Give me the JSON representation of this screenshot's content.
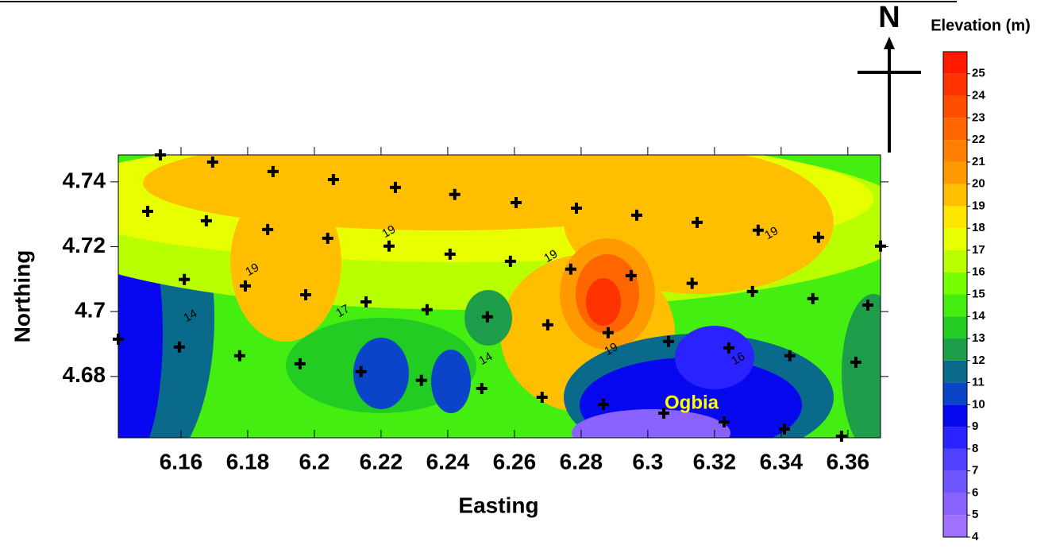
{
  "chart_data": {
    "type": "contour",
    "xlabel": "Easting",
    "ylabel": "Northing",
    "xlim": [
      6.1412,
      6.3698
    ],
    "ylim": [
      4.6611,
      4.7483
    ],
    "xticks": [
      6.16,
      6.18,
      6.2,
      6.22,
      6.24,
      6.26,
      6.28,
      6.3,
      6.32,
      6.34,
      6.36
    ],
    "yticks": [
      4.74,
      4.72,
      4.7,
      4.68
    ],
    "colorbar": {
      "label": "Elevation (m)",
      "levels": [
        4,
        5,
        6,
        7,
        8,
        9,
        10,
        11,
        12,
        13,
        14,
        15,
        16,
        17,
        18,
        19,
        20,
        21,
        22,
        23,
        24,
        25
      ],
      "colors": [
        "#a070ff",
        "#8a62ff",
        "#6f55ff",
        "#5040ff",
        "#2a22ff",
        "#0808f0",
        "#0a44c8",
        "#0a6a8c",
        "#1e9e4a",
        "#22cc22",
        "#44ee11",
        "#77ff00",
        "#b8ff00",
        "#e8ff00",
        "#ffe600",
        "#ffbf00",
        "#ff9900",
        "#ff8000",
        "#ff6600",
        "#ff4d00",
        "#ff3300",
        "#ff1a00"
      ]
    },
    "north": "N",
    "place_label": "Ogbia",
    "contour_labels": [
      "19",
      "17",
      "19",
      "19",
      "19",
      "19",
      "14",
      "16",
      "14"
    ],
    "wells": {
      "x": [
        6.1538,
        6.1695,
        6.15,
        6.1876,
        6.2057,
        6.2243,
        6.2421,
        6.2605,
        6.2786,
        6.2967,
        6.3148,
        6.3331,
        6.3512,
        6.3698,
        6.1676,
        6.186,
        6.204,
        6.2224,
        6.2407,
        6.2588,
        6.2769,
        6.295,
        6.3133,
        6.3314,
        6.3495,
        6.366,
        6.161,
        6.1793,
        6.1974,
        6.2155,
        6.2338,
        6.2519,
        6.27,
        6.2881,
        6.3062,
        6.3243,
        6.3426,
        6.3624,
        6.1412,
        6.1595,
        6.1776,
        6.1957,
        6.214,
        6.2321,
        6.2502,
        6.2683,
        6.2867,
        6.3048,
        6.3229,
        6.341,
        6.3581
      ],
      "y": [
        4.7483,
        4.7461,
        4.7309,
        4.7432,
        4.7407,
        4.7383,
        4.7361,
        4.7336,
        4.7319,
        4.7297,
        4.7275,
        4.7251,
        4.7229,
        4.7202,
        4.728,
        4.7253,
        4.7226,
        4.7202,
        4.7177,
        4.7155,
        4.7131,
        4.7111,
        4.7087,
        4.7062,
        4.704,
        4.702,
        4.7099,
        4.7079,
        4.7052,
        4.703,
        4.7006,
        4.6984,
        4.6959,
        4.6935,
        4.6908,
        4.6888,
        4.6864,
        4.6844,
        4.6915,
        4.6891,
        4.6864,
        4.6839,
        4.6815,
        4.6788,
        4.6763,
        4.6736,
        4.6714,
        4.6687,
        4.666,
        4.6638,
        4.6616
      ]
    }
  }
}
